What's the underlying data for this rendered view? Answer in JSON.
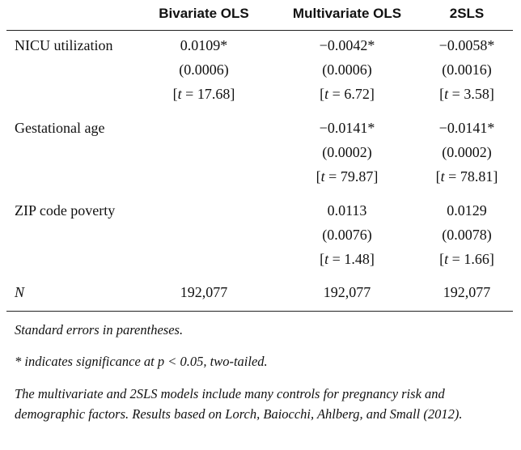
{
  "table": {
    "columns": [
      "Bivariate OLS",
      "Multivariate OLS",
      "2SLS"
    ],
    "rows": [
      {
        "label": "NICU utilization",
        "bivariate": {
          "coef": "0.0109*",
          "se": "(0.0006)",
          "t_pre": "[",
          "t_var": "t",
          "t_val": " = 17.68]"
        },
        "multivariate": {
          "coef": "−0.0042*",
          "se": "(0.0006)",
          "t_pre": "[",
          "t_var": "t",
          "t_val": " = 6.72]"
        },
        "tsls": {
          "coef": "−0.0058*",
          "se": "(0.0016)",
          "t_pre": "[",
          "t_var": "t",
          "t_val": " = 3.58]"
        }
      },
      {
        "label": "Gestational age",
        "multivariate": {
          "coef": "−0.0141*",
          "se": "(0.0002)",
          "t_pre": "[",
          "t_var": "t",
          "t_val": " = 79.87]"
        },
        "tsls": {
          "coef": "−0.0141*",
          "se": "(0.0002)",
          "t_pre": "[",
          "t_var": "t",
          "t_val": " = 78.81]"
        }
      },
      {
        "label": "ZIP code poverty",
        "multivariate": {
          "coef": "0.0113",
          "se": "(0.0076)",
          "t_pre": "[",
          "t_var": "t",
          "t_val": " = 1.48]"
        },
        "tsls": {
          "coef": "0.0129",
          "se": "(0.0078)",
          "t_pre": "[",
          "t_var": "t",
          "t_val": " = 1.66]"
        }
      }
    ],
    "n_row": {
      "label": "N",
      "bivariate": "192,077",
      "multivariate": "192,077",
      "tsls": "192,077"
    }
  },
  "notes": {
    "se": "Standard errors in parentheses.",
    "sig": "* indicates significance at p < 0.05, two-tailed.",
    "controls": "The multivariate and 2SLS models include many controls for pregnancy risk and demographic factors. Results based on Lorch, Baiocchi, Ahlberg, and Small (2012)."
  }
}
